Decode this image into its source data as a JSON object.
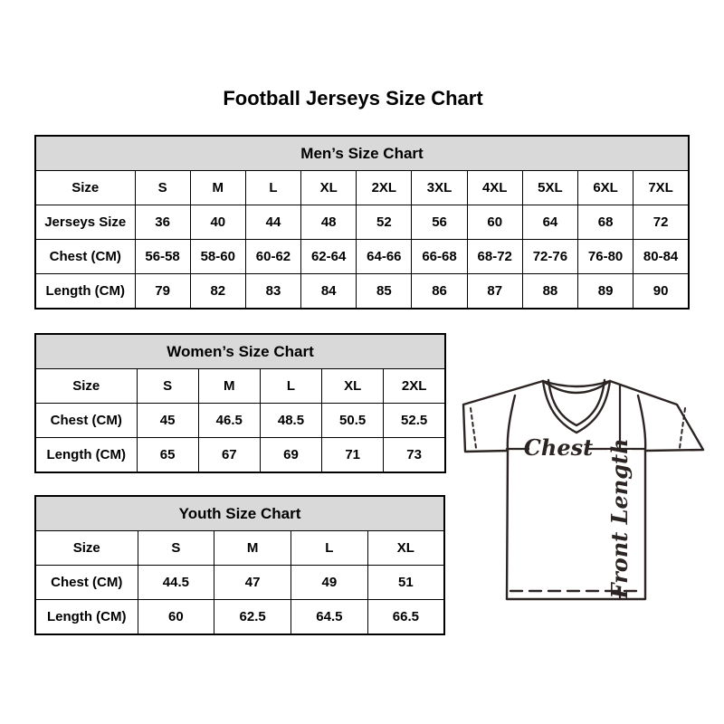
{
  "page": {
    "title": "Football Jerseys Size Chart",
    "background_color": "#ffffff",
    "table_border_color": "#000000",
    "table_header_fill": "#d9d9d9",
    "diagram_line_color": "#2b2422"
  },
  "tables": {
    "men": {
      "title": "Men’s Size Chart",
      "rows": [
        [
          "Size",
          "S",
          "M",
          "L",
          "XL",
          "2XL",
          "3XL",
          "4XL",
          "5XL",
          "6XL",
          "7XL"
        ],
        [
          "Jerseys Size",
          "36",
          "40",
          "44",
          "48",
          "52",
          "56",
          "60",
          "64",
          "68",
          "72"
        ],
        [
          "Chest (CM)",
          "56-58",
          "58-60",
          "60-62",
          "62-64",
          "64-66",
          "66-68",
          "68-72",
          "72-76",
          "76-80",
          "80-84"
        ],
        [
          "Length (CM)",
          "79",
          "82",
          "83",
          "84",
          "85",
          "86",
          "87",
          "88",
          "89",
          "90"
        ]
      ]
    },
    "women": {
      "title": "Women’s Size Chart",
      "rows": [
        [
          "Size",
          "S",
          "M",
          "L",
          "XL",
          "2XL"
        ],
        [
          "Chest (CM)",
          "45",
          "46.5",
          "48.5",
          "50.5",
          "52.5"
        ],
        [
          "Length (CM)",
          "65",
          "67",
          "69",
          "71",
          "73"
        ]
      ]
    },
    "youth": {
      "title": "Youth Size Chart",
      "rows": [
        [
          "Size",
          "S",
          "M",
          "L",
          "XL"
        ],
        [
          "Chest (CM)",
          "44.5",
          "47",
          "49",
          "51"
        ],
        [
          "Length (CM)",
          "60",
          "62.5",
          "64.5",
          "66.5"
        ]
      ]
    }
  },
  "diagram": {
    "chest_label": "Chest",
    "front_length_label": "Front Length"
  }
}
